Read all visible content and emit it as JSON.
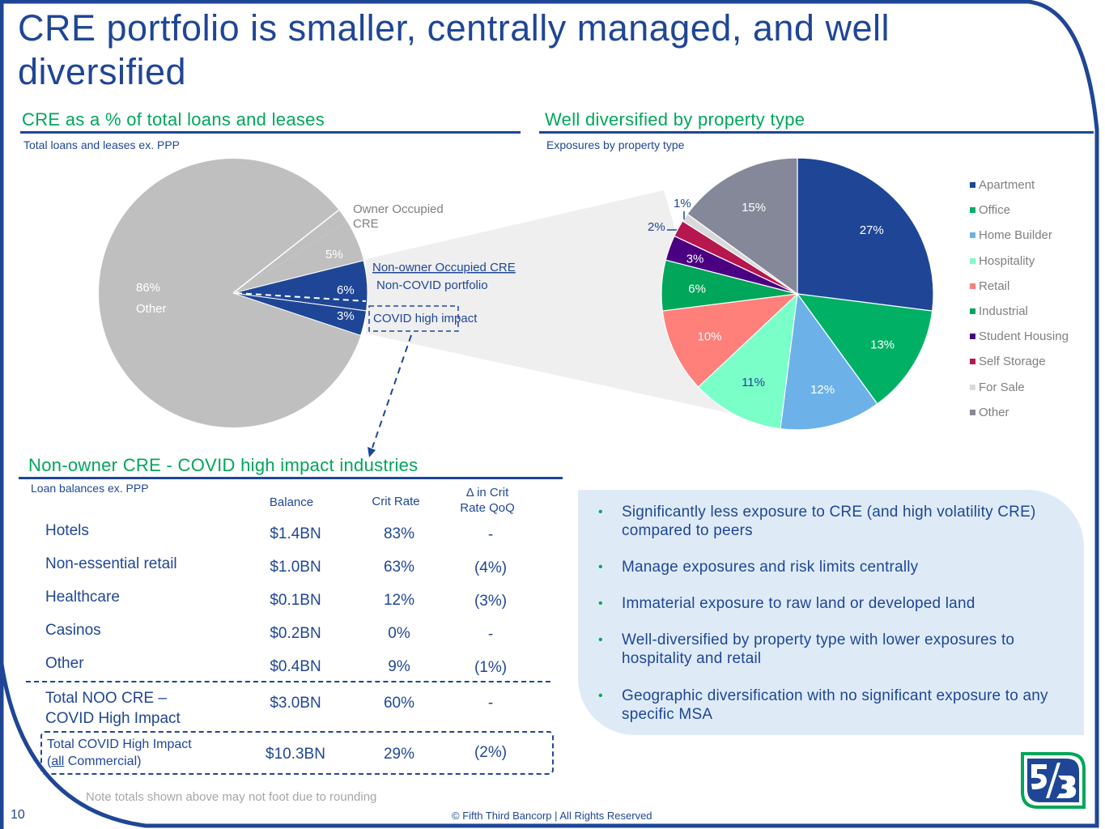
{
  "slide": {
    "title": "CRE portfolio is smaller, centrally managed, and well diversified",
    "page_number": "10",
    "copyright": "© Fifth Third Bancorp | All Rights Reserved",
    "note": "Note totals shown above may not foot due to rounding",
    "logo": "fifth-third-logo"
  },
  "colors": {
    "brand_blue": "#1f4696",
    "brand_green": "#00a65a",
    "callout_bg": "#deebf7",
    "zoom_wedge": "#efefef"
  },
  "left_section": {
    "title": "CRE as a % of total loans and leases",
    "subtitle": "Total loans and leases ex. PPP",
    "annotations": {
      "owner_occupied": [
        "Owner Occupied",
        "CRE"
      ],
      "noo_title": "Non-owner Occupied CRE",
      "noo_sub": "Non-COVID portfolio",
      "covid_box": "COVID high impact",
      "other_label": "Other"
    }
  },
  "right_section": {
    "title": "Well diversified by property type",
    "subtitle": "Exposures by property type"
  },
  "chart_data": [
    {
      "type": "pie",
      "title": "CRE as a % of total loans and leases",
      "subtitle": "Total loans and leases ex. PPP",
      "categories": [
        "Other",
        "Owner Occupied CRE",
        "Non-owner Occupied CRE - Non-COVID portfolio",
        "Non-owner Occupied CRE - COVID high impact"
      ],
      "values": [
        86,
        5,
        6,
        3
      ],
      "labels": [
        "86%",
        "5%",
        "6%",
        "3%"
      ],
      "colors": [
        "#bfbfbf",
        "#bfbfbf",
        "#1f4696",
        "#1f4696"
      ]
    },
    {
      "type": "pie",
      "title": "Well diversified by property type",
      "subtitle": "Exposures by property type",
      "categories": [
        "Apartment",
        "Office",
        "Home Builder",
        "Hospitality",
        "Retail",
        "Industrial",
        "Student Housing",
        "Self Storage",
        "For Sale",
        "Other"
      ],
      "values": [
        27,
        13,
        12,
        11,
        10,
        6,
        3,
        2,
        1,
        15
      ],
      "labels": [
        "27%",
        "13%",
        "12%",
        "11%",
        "10%",
        "6%",
        "3%",
        "2%",
        "1%",
        "15%"
      ],
      "colors": [
        "#1f4696",
        "#00b065",
        "#6cb2e8",
        "#7affc8",
        "#ff7f7a",
        "#00a65a",
        "#4b0082",
        "#b5174e",
        "#d9d9d9",
        "#858899"
      ],
      "label_colors": [
        "#ffffff",
        "#ffffff",
        "#ffffff",
        "#1f4696",
        "#ffffff",
        "#ffffff",
        "#ffffff",
        "#1f4696",
        "#1f4696",
        "#ffffff"
      ],
      "legend": "right"
    }
  ],
  "table_section": {
    "title": "Non-owner CRE - COVID high impact industries",
    "subtitle": "Loan balances ex. PPP",
    "headers": {
      "balance": "Balance",
      "crit": "Crit Rate",
      "delta_line1": "Δ in Crit",
      "delta_line2": "Rate QoQ"
    },
    "rows": [
      {
        "name": "Hotels",
        "balance": "$1.4BN",
        "crit": "83%",
        "delta": "-"
      },
      {
        "name": "Non-essential retail",
        "balance": "$1.0BN",
        "crit": "63%",
        "delta": "(4%)"
      },
      {
        "name": "Healthcare",
        "balance": "$0.1BN",
        "crit": "12%",
        "delta": "(3%)"
      },
      {
        "name": "Casinos",
        "balance": "$0.2BN",
        "crit": "0%",
        "delta": "-"
      },
      {
        "name": "Other",
        "balance": "$0.4BN",
        "crit": "9%",
        "delta": "(1%)"
      }
    ],
    "total_noo": {
      "name_line1": "Total NOO CRE –",
      "name_line2": "COVID High Impact",
      "balance": "$3.0BN",
      "crit": "60%",
      "delta": "-"
    },
    "total_all": {
      "name_line1": "Total COVID High Impact",
      "name_line2_pre": "(",
      "name_line2_underlined": "all",
      "name_line2_post": " Commercial)",
      "balance": "$10.3BN",
      "crit": "29%",
      "delta": "(2%)"
    }
  },
  "bullets": [
    "Significantly less exposure to CRE (and high volatility CRE) compared to peers",
    "Manage exposures and risk limits centrally",
    "Immaterial exposure to raw land or developed land",
    "Well-diversified by property type with lower exposures to hospitality and retail",
    "Geographic diversification with no significant exposure to any specific MSA"
  ]
}
